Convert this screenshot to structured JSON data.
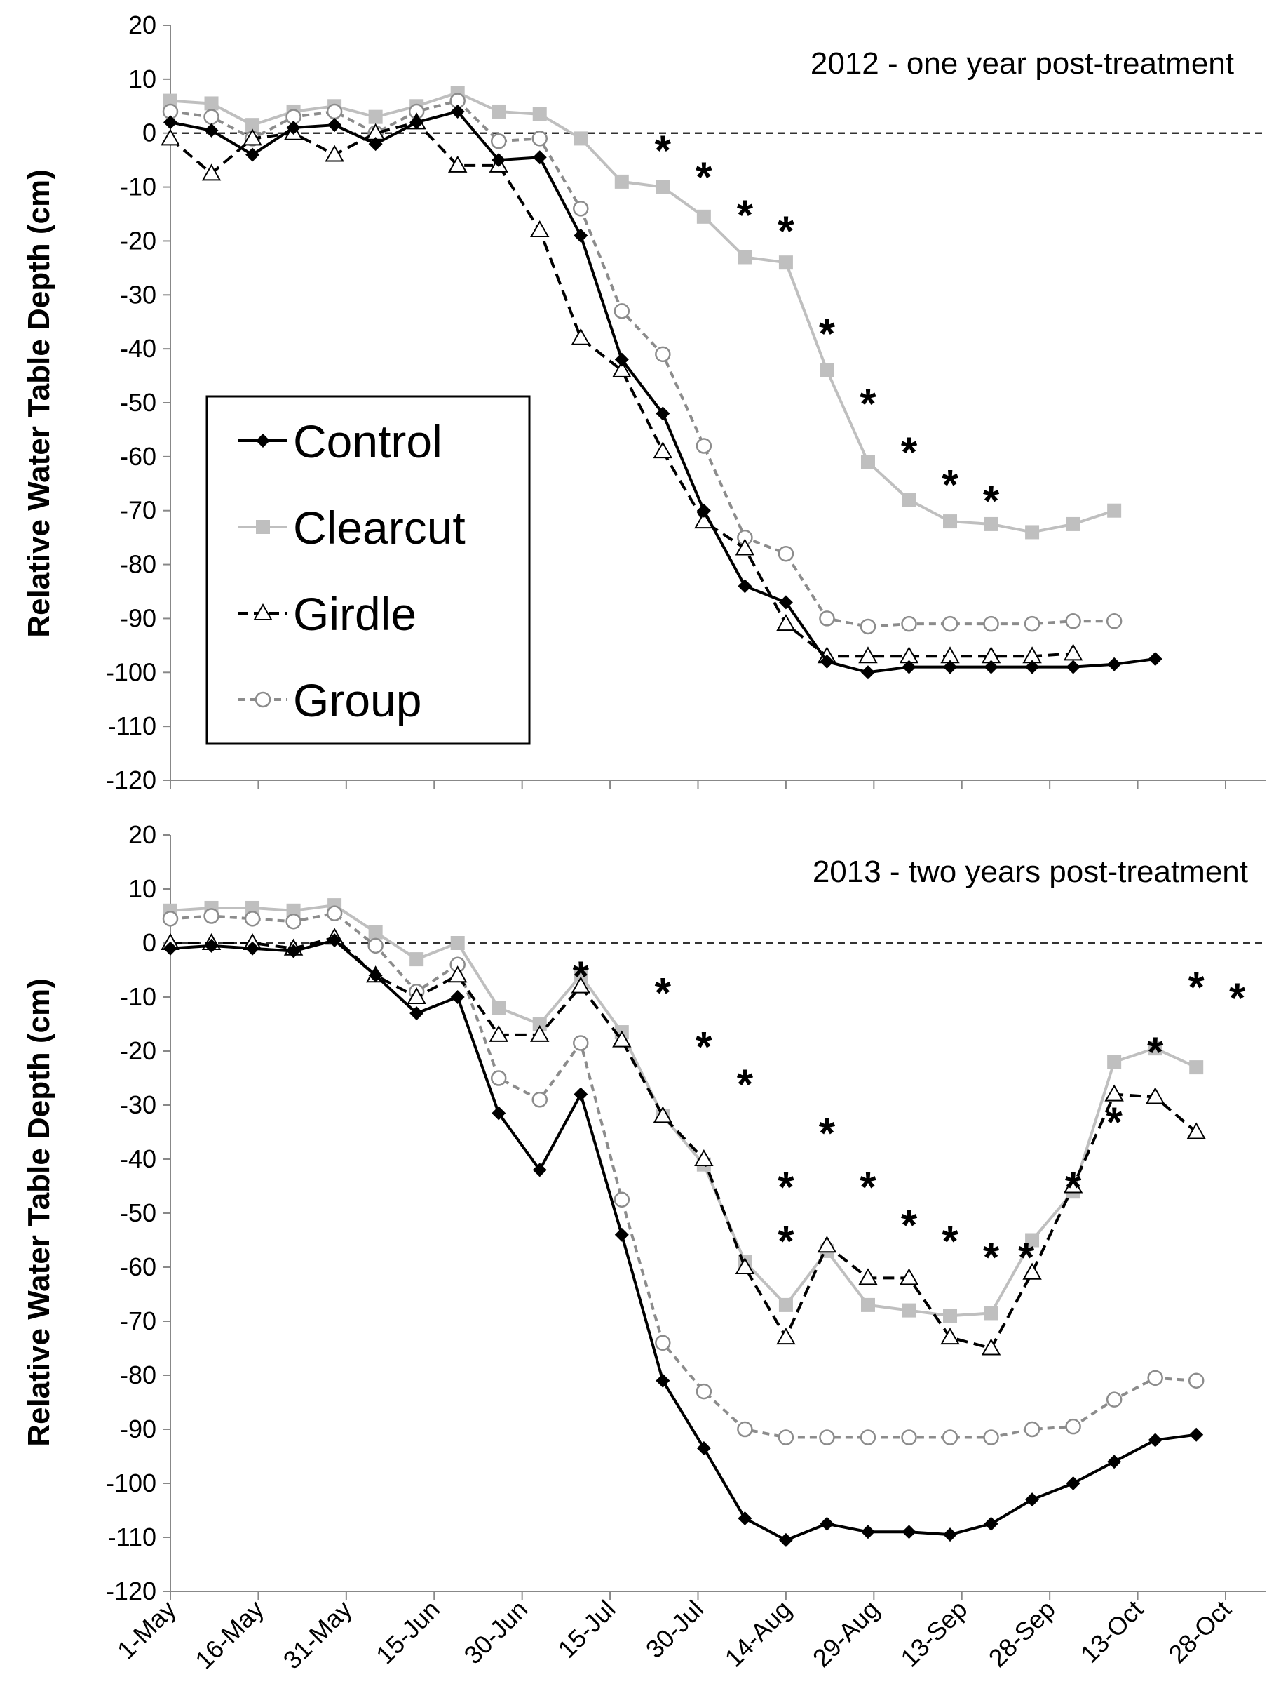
{
  "chart_data": [
    {
      "type": "line",
      "title": "2012 - one year post-treatment",
      "xlabel": "",
      "ylabel": "Relative Water Table Depth (cm)",
      "ylim": [
        -120,
        20
      ],
      "yticks": [
        20,
        10,
        0,
        -10,
        -20,
        -30,
        -40,
        -50,
        -60,
        -70,
        -80,
        -90,
        -100,
        -110,
        -120
      ],
      "xlim": [
        0,
        185
      ],
      "reference_line": 0,
      "legend": [
        "Control",
        "Clearcut",
        "Girdle",
        "Group"
      ],
      "legend_position": "middle-left",
      "x": [
        0,
        7,
        14,
        21,
        28,
        35,
        42,
        49,
        56,
        63,
        70,
        77,
        84,
        91,
        98,
        105,
        112,
        119,
        126,
        133,
        140,
        147,
        154,
        161,
        168
      ],
      "series": [
        {
          "name": "Control",
          "color": "#000000",
          "dash": "solid",
          "marker": "diamond",
          "values": [
            2,
            0.5,
            -4,
            1,
            1.5,
            -2,
            2,
            4,
            -5,
            -4.5,
            -19,
            -42,
            -52,
            -70,
            -84,
            -87,
            -98,
            -100,
            -99,
            -99,
            -99,
            -99,
            -99,
            -98.5,
            -97.5
          ]
        },
        {
          "name": "Clearcut",
          "color": "#bfbfbf",
          "dash": "solid",
          "marker": "square",
          "values": [
            6,
            5.5,
            1.5,
            4,
            5,
            3,
            5,
            7.5,
            4,
            3.5,
            -1,
            -9,
            -10,
            -15.5,
            -23,
            -24,
            -44,
            -61,
            -68,
            -72,
            -72.5,
            -74,
            -72.5,
            -70,
            null
          ]
        },
        {
          "name": "Girdle",
          "color": "#000000",
          "dash": "dashed",
          "marker": "triangle",
          "values": [
            -1,
            -7.5,
            -1,
            0,
            -4,
            0,
            2,
            -6,
            -6,
            -18,
            -38,
            -44,
            -59,
            -72,
            -77,
            -91,
            -97,
            -97,
            -97,
            -97,
            -97,
            -97,
            -96.5,
            null,
            null
          ]
        },
        {
          "name": "Group",
          "color": "#8c8c8c",
          "dash": "dashed",
          "marker": "circle",
          "values": [
            4,
            3,
            -1,
            3,
            4,
            0,
            4,
            6,
            -1.5,
            -1,
            -14,
            -33,
            -41,
            -58,
            -75,
            -78,
            -90,
            -91.5,
            -91,
            -91,
            -91,
            -91,
            -90.5,
            -90.5,
            null
          ]
        }
      ],
      "significance_markers": [
        {
          "label": "*",
          "x": 84,
          "y": -3
        },
        {
          "label": "*",
          "x": 91,
          "y": -8
        },
        {
          "label": "*",
          "x": 98,
          "y": -15
        },
        {
          "label": "*",
          "x": 105,
          "y": -18
        },
        {
          "label": "*",
          "x": 112,
          "y": -37
        },
        {
          "label": "*",
          "x": 119,
          "y": -50
        },
        {
          "label": "*",
          "x": 126,
          "y": -59
        },
        {
          "label": "*",
          "x": 133,
          "y": -65
        },
        {
          "label": "*",
          "x": 140,
          "y": -68
        }
      ]
    },
    {
      "type": "line",
      "title": "2013 - two years post-treatment",
      "xlabel": "",
      "ylabel": "Relative Water Table Depth (cm)",
      "ylim": [
        -120,
        20
      ],
      "yticks": [
        20,
        10,
        0,
        -10,
        -20,
        -30,
        -40,
        -50,
        -60,
        -70,
        -80,
        -90,
        -100,
        -110,
        -120
      ],
      "xlim": [
        0,
        185
      ],
      "reference_line": 0,
      "x": [
        0,
        7,
        14,
        21,
        28,
        35,
        42,
        49,
        56,
        63,
        70,
        77,
        84,
        91,
        98,
        105,
        112,
        119,
        126,
        133,
        140,
        147,
        154,
        161,
        168,
        175,
        182
      ],
      "xtick_labels": [
        "1-May",
        "16-May",
        "31-May",
        "15-Jun",
        "30-Jun",
        "15-Jul",
        "30-Jul",
        "14-Aug",
        "29-Aug",
        "13-Sep",
        "28-Sep",
        "13-Oct",
        "28-Oct"
      ],
      "xtick_positions": [
        0,
        15,
        30,
        45,
        60,
        75,
        90,
        105,
        120,
        135,
        150,
        165,
        180
      ],
      "series": [
        {
          "name": "Control",
          "color": "#000000",
          "dash": "solid",
          "marker": "diamond",
          "values": [
            -1,
            -0.5,
            -1,
            -1.5,
            0.5,
            -6,
            -13,
            -10,
            -31.5,
            -42,
            -28,
            -54,
            -81,
            -93.5,
            -106.5,
            -110.5,
            -107.5,
            -109,
            -109,
            -109.5,
            -107.5,
            -103,
            -100,
            -96,
            -92,
            -91,
            null
          ]
        },
        {
          "name": "Clearcut",
          "color": "#bfbfbf",
          "dash": "solid",
          "marker": "square",
          "values": [
            6,
            6.5,
            6.5,
            6,
            7,
            2,
            -3,
            0,
            -12,
            -15,
            -6,
            -16.5,
            -32,
            -41,
            -59,
            -67,
            -57,
            -67,
            -68,
            -69,
            -68.5,
            -55,
            -46,
            -22,
            -19.5,
            -23,
            null
          ]
        },
        {
          "name": "Girdle",
          "color": "#000000",
          "dash": "dashed",
          "marker": "triangle",
          "values": [
            0,
            0,
            0,
            -1,
            1,
            -6,
            -10,
            -6,
            -17,
            -17,
            -8,
            -18,
            -32,
            -40,
            -60,
            -73,
            -56,
            -62,
            -62,
            -73,
            -75,
            -61,
            -45,
            -28,
            -28.5,
            -35,
            null
          ]
        },
        {
          "name": "Group",
          "color": "#8c8c8c",
          "dash": "dashed",
          "marker": "circle",
          "values": [
            4.5,
            5,
            4.5,
            4,
            5.5,
            -0.5,
            -9,
            -4,
            -25,
            -29,
            -18.5,
            -47.5,
            -74,
            -83,
            -90,
            -91.5,
            -91.5,
            -91.5,
            -91.5,
            -91.5,
            -91.5,
            -90,
            -89.5,
            -84.5,
            -80.5,
            -81,
            null
          ]
        }
      ],
      "significance_markers": [
        {
          "label": "*",
          "x": 70,
          "y": -6
        },
        {
          "label": "*",
          "x": 84,
          "y": -9
        },
        {
          "label": "*",
          "x": 91,
          "y": -19
        },
        {
          "label": "*",
          "x": 98,
          "y": -26
        },
        {
          "label": "*",
          "x": 105,
          "y": -45
        },
        {
          "label": "*",
          "x": 112,
          "y": -35
        },
        {
          "label": "*",
          "x": 105,
          "y": -55
        },
        {
          "label": "*",
          "x": 119,
          "y": -45
        },
        {
          "label": "*",
          "x": 126,
          "y": -52
        },
        {
          "label": "*",
          "x": 133,
          "y": -55
        },
        {
          "label": "*",
          "x": 140,
          "y": -58
        },
        {
          "label": "*",
          "x": 146,
          "y": -58
        },
        {
          "label": "*",
          "x": 154,
          "y": -45
        },
        {
          "label": "*",
          "x": 161,
          "y": -33
        },
        {
          "label": "*",
          "x": 168,
          "y": -20
        },
        {
          "label": "*",
          "x": 175,
          "y": -8
        },
        {
          "label": "*",
          "x": 182,
          "y": -10
        }
      ]
    }
  ]
}
